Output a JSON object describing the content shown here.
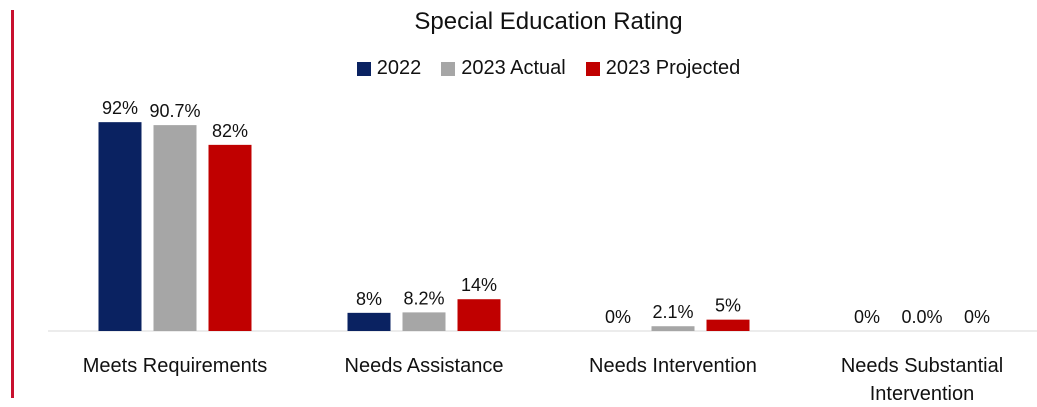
{
  "chart_data": {
    "type": "bar",
    "title": "Special Education Rating",
    "xlabel": "",
    "ylabel": "",
    "ylim": [
      0,
      100
    ],
    "grid": false,
    "legend_position": "top-center",
    "categories": [
      [
        "Meets Requirements"
      ],
      [
        "Needs Assistance"
      ],
      [
        "Needs Intervention"
      ],
      [
        "Needs Substantial",
        "Intervention"
      ]
    ],
    "series": [
      {
        "name": "2022",
        "color": "#0a2261",
        "values": [
          92,
          8,
          0,
          0
        ],
        "labels": [
          "92%",
          "8%",
          "0%",
          "0%"
        ]
      },
      {
        "name": "2023 Actual",
        "color": "#a6a6a6",
        "values": [
          90.7,
          8.2,
          2.1,
          0.0
        ],
        "labels": [
          "90.7%",
          "8.2%",
          "2.1%",
          "0.0%"
        ]
      },
      {
        "name": "2023 Projected",
        "color": "#c00000",
        "values": [
          82,
          14,
          5,
          0
        ],
        "labels": [
          "82%",
          "14%",
          "5%",
          "0%"
        ]
      }
    ]
  }
}
